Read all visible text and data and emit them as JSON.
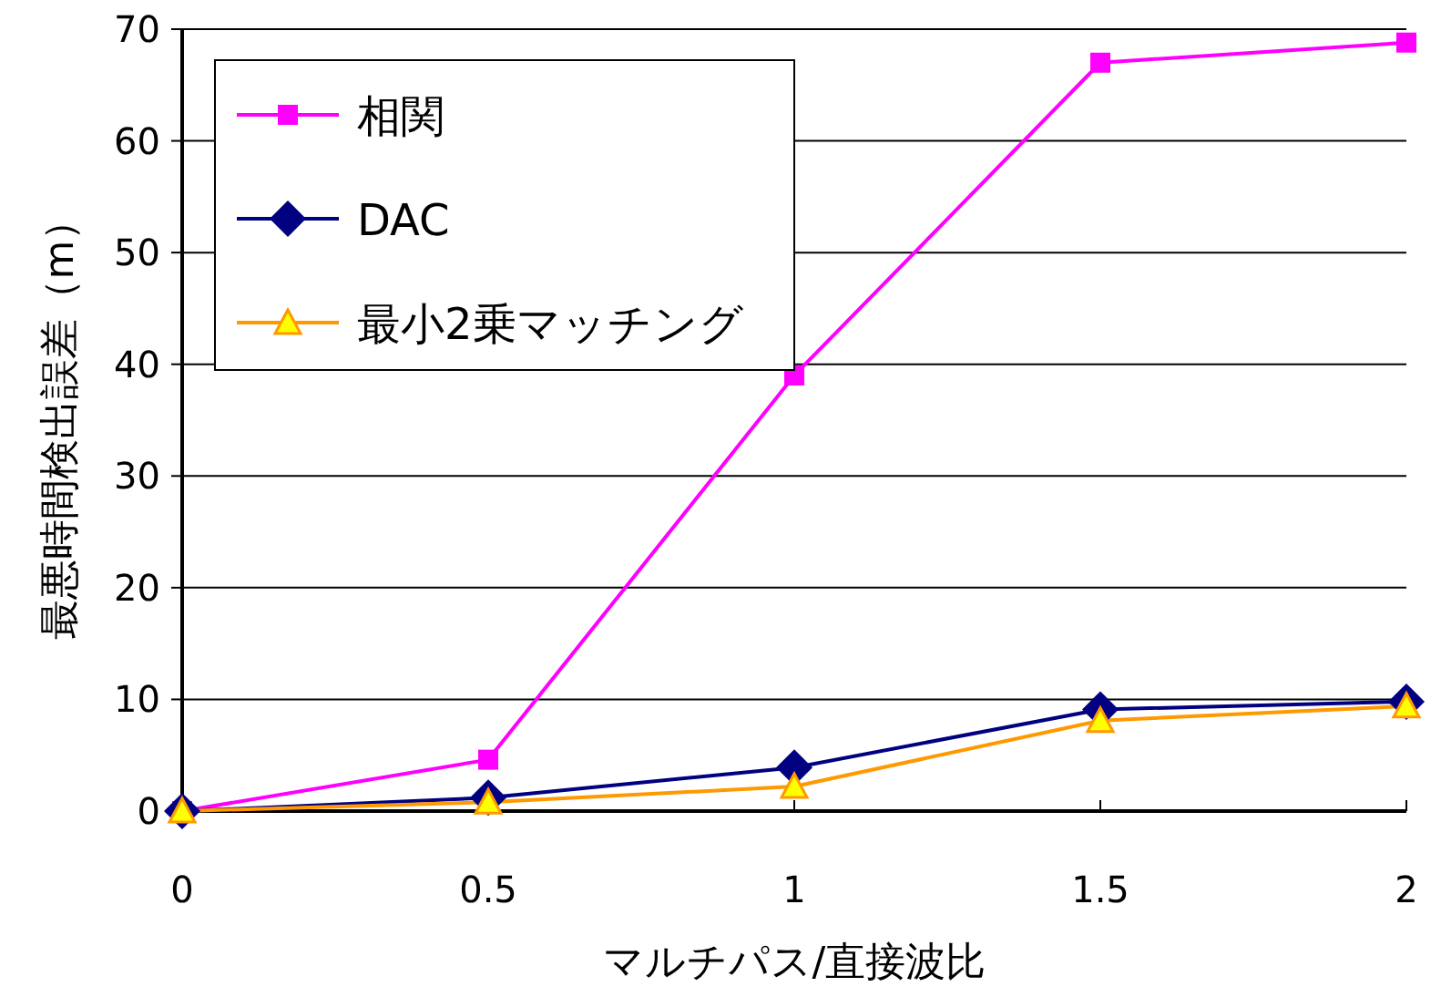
{
  "chart_data": {
    "type": "line",
    "xlabel": "マルチパス/直接波比",
    "ylabel": "最悪時間検出誤差（m）",
    "x": [
      0,
      0.5,
      1,
      1.5,
      2
    ],
    "series": [
      {
        "name": "相関",
        "color": "#ff00ff",
        "marker": "square",
        "values": [
          0,
          4.6,
          39,
          67,
          68.8
        ]
      },
      {
        "name": "DAC",
        "color": "#000080",
        "marker": "diamond",
        "values": [
          0,
          1.2,
          3.9,
          9.1,
          9.8
        ]
      },
      {
        "name": "最小2乗マッチング",
        "color": "#ff9900",
        "marker": "triangle",
        "values": [
          0,
          0.8,
          2.2,
          8.1,
          9.4
        ]
      }
    ],
    "xlim": [
      0,
      2
    ],
    "ylim": [
      0,
      70
    ],
    "xticks": [
      0,
      0.5,
      1,
      1.5,
      2
    ],
    "yticks": [
      0,
      10,
      20,
      30,
      40,
      50,
      60,
      70
    ],
    "grid": "y",
    "legend": "top left",
    "line_style": "solid"
  }
}
